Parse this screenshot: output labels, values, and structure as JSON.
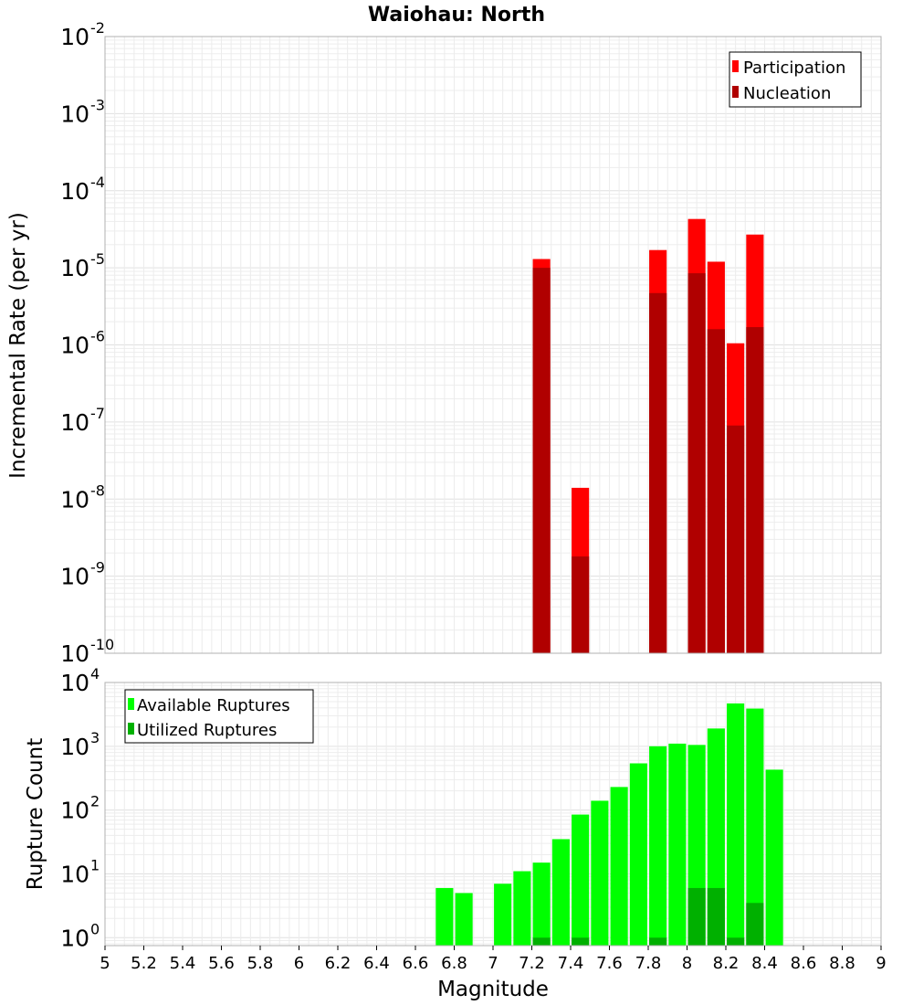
{
  "chart_data": [
    {
      "type": "bar",
      "title": "Waiohau: North",
      "ylabel": "Incremental Rate (per yr)",
      "xlabel": "",
      "xlim": [
        5,
        9
      ],
      "ylim": [
        1e-10,
        0.01
      ],
      "yscale": "log",
      "ytick_labels": [
        {
          "base": "10",
          "exp": "-10"
        },
        {
          "base": "10",
          "exp": "-9"
        },
        {
          "base": "10",
          "exp": "-8"
        },
        {
          "base": "10",
          "exp": "-7"
        },
        {
          "base": "10",
          "exp": "-6"
        },
        {
          "base": "10",
          "exp": "-5"
        },
        {
          "base": "10",
          "exp": "-4"
        },
        {
          "base": "10",
          "exp": "-3"
        },
        {
          "base": "10",
          "exp": "-2"
        }
      ],
      "grid": true,
      "legend_position": "top-right",
      "bar_width": 0.09,
      "series": [
        {
          "name": "Participation",
          "color": "#ff0000",
          "x": [
            7.25,
            7.45,
            7.85,
            8.05,
            8.15,
            8.25,
            8.35
          ],
          "values": [
            1.3e-05,
            1.4e-08,
            1.7e-05,
            4.3e-05,
            1.2e-05,
            1.05e-06,
            2.7e-05
          ]
        },
        {
          "name": "Nucleation",
          "color": "#b00000",
          "x": [
            7.25,
            7.45,
            7.85,
            8.05,
            8.15,
            8.25,
            8.35
          ],
          "values": [
            1e-05,
            1.8e-09,
            4.7e-06,
            8.5e-06,
            1.6e-06,
            9e-08,
            1.7e-06
          ]
        }
      ]
    },
    {
      "type": "bar",
      "title": "",
      "xlabel": "Magnitude",
      "ylabel": "Rupture Count",
      "xlim": [
        5,
        9
      ],
      "ylim": [
        0.75,
        10000
      ],
      "yscale": "log",
      "ytick_labels": [
        {
          "base": "10",
          "exp": "0"
        },
        {
          "base": "10",
          "exp": "1"
        },
        {
          "base": "10",
          "exp": "2"
        },
        {
          "base": "10",
          "exp": "3"
        },
        {
          "base": "10",
          "exp": "4"
        }
      ],
      "xtick_labels": [
        "5",
        "5.2",
        "5.4",
        "5.6",
        "5.8",
        "6",
        "6.2",
        "6.4",
        "6.6",
        "6.8",
        "7",
        "7.2",
        "7.4",
        "7.6",
        "7.8",
        "8",
        "8.2",
        "8.4",
        "8.6",
        "8.8",
        "9"
      ],
      "grid": true,
      "legend_position": "top-left",
      "bar_width": 0.09,
      "series": [
        {
          "name": "Available Ruptures",
          "color": "#00ff00",
          "x": [
            6.75,
            6.85,
            7.05,
            7.15,
            7.25,
            7.35,
            7.45,
            7.55,
            7.65,
            7.75,
            7.85,
            7.95,
            8.05,
            8.15,
            8.25,
            8.35,
            8.45
          ],
          "values": [
            6,
            5,
            7,
            11,
            15,
            35,
            85,
            140,
            230,
            540,
            1000,
            1100,
            1050,
            1900,
            4700,
            3900,
            430
          ]
        },
        {
          "name": "Utilized Ruptures",
          "color": "#00b000",
          "x": [
            7.25,
            7.45,
            7.85,
            8.05,
            8.15,
            8.25,
            8.35
          ],
          "values": [
            1,
            1,
            1,
            6,
            6,
            1,
            3.5
          ]
        }
      ]
    }
  ]
}
